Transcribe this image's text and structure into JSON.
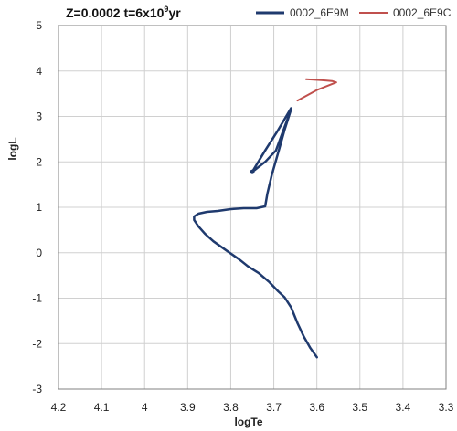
{
  "chart_data": {
    "type": "line",
    "title_main": "Z=0.0002 t=6x10",
    "title_sup": "9",
    "title_tail": "yr",
    "xlabel": "logTe",
    "ylabel": "logL",
    "xlim": [
      4.2,
      3.3
    ],
    "ylim": [
      -3,
      5
    ],
    "x_ticks": [
      "4.2",
      "4.1",
      "4",
      "3.9",
      "3.8",
      "3.7",
      "3.6",
      "3.5",
      "3.4",
      "3.3"
    ],
    "y_ticks": [
      "-3",
      "-2",
      "-1",
      "0",
      "1",
      "2",
      "3",
      "4",
      "5"
    ],
    "grid": true,
    "legend_position": "top-right",
    "series": [
      {
        "name": "0002_6E9M",
        "color": "#1f3a6e",
        "points": [
          [
            3.6,
            -2.3
          ],
          [
            3.615,
            -2.1
          ],
          [
            3.63,
            -1.85
          ],
          [
            3.645,
            -1.55
          ],
          [
            3.66,
            -1.2
          ],
          [
            3.675,
            -0.98
          ],
          [
            3.69,
            -0.85
          ],
          [
            3.71,
            -0.65
          ],
          [
            3.735,
            -0.45
          ],
          [
            3.76,
            -0.3
          ],
          [
            3.78,
            -0.15
          ],
          [
            3.81,
            0.05
          ],
          [
            3.84,
            0.25
          ],
          [
            3.86,
            0.42
          ],
          [
            3.875,
            0.58
          ],
          [
            3.885,
            0.72
          ],
          [
            3.885,
            0.8
          ],
          [
            3.875,
            0.86
          ],
          [
            3.855,
            0.9
          ],
          [
            3.83,
            0.92
          ],
          [
            3.8,
            0.96
          ],
          [
            3.77,
            0.98
          ],
          [
            3.74,
            0.98
          ],
          [
            3.72,
            1.02
          ],
          [
            3.715,
            1.3
          ],
          [
            3.705,
            1.7
          ],
          [
            3.69,
            2.2
          ],
          [
            3.675,
            2.7
          ],
          [
            3.66,
            3.15
          ],
          [
            3.695,
            2.25
          ],
          [
            3.72,
            2.0
          ],
          [
            3.75,
            1.78
          ],
          [
            3.72,
            2.25
          ],
          [
            3.69,
            2.7
          ],
          [
            3.66,
            3.18
          ]
        ]
      },
      {
        "name": "0002_6E9C",
        "color": "#c0504d",
        "points": [
          [
            3.645,
            3.35
          ],
          [
            3.6,
            3.58
          ],
          [
            3.555,
            3.75
          ],
          [
            3.565,
            3.78
          ],
          [
            3.59,
            3.8
          ],
          [
            3.625,
            3.82
          ]
        ]
      }
    ]
  }
}
